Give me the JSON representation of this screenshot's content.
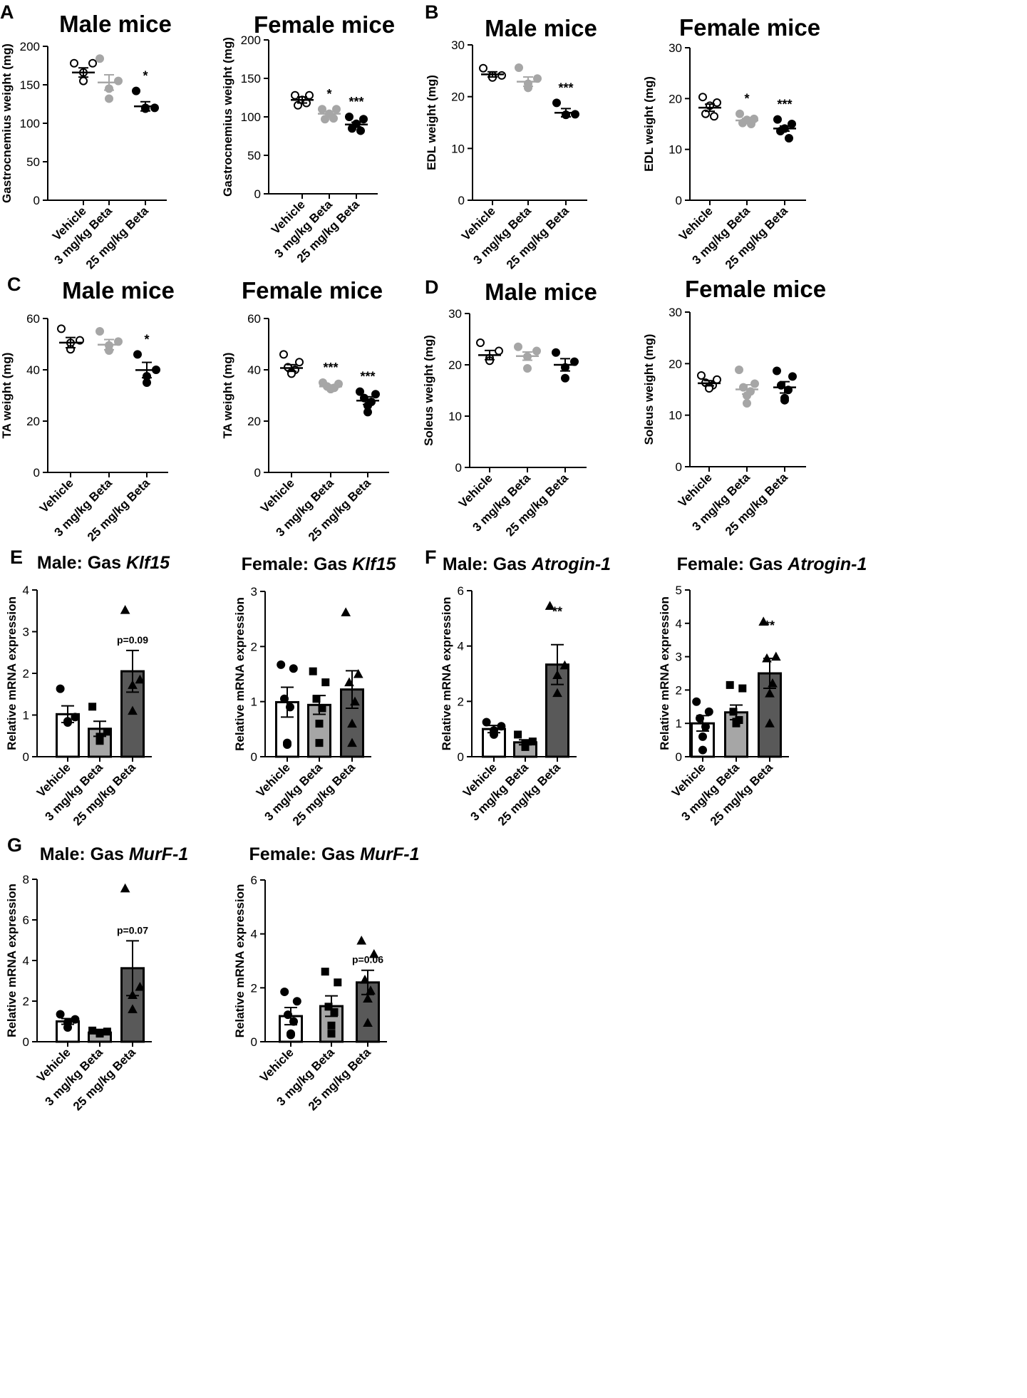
{
  "figure": {
    "panel_labels": [
      "A",
      "B",
      "C",
      "D",
      "E",
      "F",
      "G"
    ],
    "colors": {
      "vehicle": "#ffffff",
      "low_dose_point": "#a6a6a6",
      "high_dose_point": "#000000",
      "bar_vehicle": "#ffffff",
      "bar_low": "#a6a6a6",
      "bar_high": "#595959",
      "axis": "#000000"
    }
  },
  "chart_data": [
    {
      "id": "A-male",
      "panel": "A",
      "type": "scatter",
      "title": "Male mice",
      "title_style": "big",
      "ylabel": "Gastrocnemius weight (mg)",
      "ylim": [
        0,
        200
      ],
      "yticks": [
        0,
        50,
        100,
        150,
        200
      ],
      "categories": [
        "Vehicle",
        "3 mg/kg Beta",
        "25 mg/kg Beta"
      ],
      "series": [
        {
          "name": "Vehicle",
          "mean": 166,
          "sem": 6,
          "points": [
            178,
            178,
            166,
            155
          ],
          "marker": "open-circle"
        },
        {
          "name": "3 mg/kg Beta",
          "mean": 153,
          "sem": 10,
          "points": [
            184,
            155,
            145,
            132
          ],
          "marker": "grey-circle"
        },
        {
          "name": "25 mg/kg Beta",
          "mean": 122,
          "sem": 6,
          "points": [
            142,
            120,
            120,
            119
          ],
          "marker": "black-circle"
        }
      ],
      "annotations": [
        "",
        "",
        "*"
      ]
    },
    {
      "id": "A-female",
      "panel": "",
      "type": "scatter",
      "title": "Female mice",
      "title_style": "big",
      "ylabel": "Gastrocnemius weight (mg)",
      "ylim": [
        0,
        200
      ],
      "yticks": [
        0,
        50,
        100,
        150,
        200
      ],
      "categories": [
        "Vehicle",
        "3 mg/kg Beta",
        "25 mg/kg Beta"
      ],
      "series": [
        {
          "name": "Vehicle",
          "mean": 122,
          "sem": 4,
          "points": [
            128,
            128,
            122,
            115,
            118
          ],
          "marker": "open-circle"
        },
        {
          "name": "3 mg/kg Beta",
          "mean": 104,
          "sem": 3,
          "points": [
            110,
            110,
            104,
            97,
            98
          ],
          "marker": "grey-circle"
        },
        {
          "name": "25 mg/kg Beta",
          "mean": 90,
          "sem": 3,
          "points": [
            100,
            97,
            91,
            85,
            82
          ],
          "marker": "black-circle"
        }
      ],
      "annotations": [
        "",
        "*",
        "***"
      ]
    },
    {
      "id": "B-male",
      "panel": "B",
      "type": "scatter",
      "title": "Male mice",
      "title_style": "big",
      "ylabel": "EDL weight (mg)",
      "ylim": [
        0,
        30
      ],
      "yticks": [
        0,
        10,
        20,
        30
      ],
      "categories": [
        "Vehicle",
        "3 mg/kg Beta",
        "25 mg/kg Beta"
      ],
      "series": [
        {
          "name": "Vehicle",
          "mean": 24.3,
          "sem": 0.5,
          "points": [
            25.5,
            24.1,
            24.1,
            23.7
          ],
          "marker": "open-circle"
        },
        {
          "name": "3 mg/kg Beta",
          "mean": 22.9,
          "sem": 0.9,
          "points": [
            25.6,
            23.5,
            22.5,
            21.7
          ],
          "marker": "grey-circle"
        },
        {
          "name": "25 mg/kg Beta",
          "mean": 16.9,
          "sem": 0.8,
          "points": [
            18.8,
            16.6,
            16.5,
            16.5
          ],
          "marker": "black-circle"
        }
      ],
      "annotations": [
        "",
        "",
        "***"
      ]
    },
    {
      "id": "B-female",
      "panel": "",
      "type": "scatter",
      "title": "Female mice",
      "title_style": "big",
      "ylabel": "EDL weight (mg)",
      "ylim": [
        0,
        30
      ],
      "yticks": [
        0,
        10,
        20,
        30
      ],
      "categories": [
        "Vehicle",
        "3 mg/kg Beta",
        "25 mg/kg Beta"
      ],
      "series": [
        {
          "name": "Vehicle",
          "mean": 18.2,
          "sem": 0.7,
          "points": [
            20.3,
            19.2,
            18.6,
            17.0,
            16.5
          ],
          "marker": "open-circle"
        },
        {
          "name": "3 mg/kg Beta",
          "mean": 15.7,
          "sem": 0.4,
          "points": [
            17.0,
            16.0,
            15.8,
            15.2,
            15.0
          ],
          "marker": "grey-circle"
        },
        {
          "name": "25 mg/kg Beta",
          "mean": 14.1,
          "sem": 0.5,
          "points": [
            15.9,
            15.0,
            14.1,
            13.6,
            12.2
          ],
          "marker": "black-circle"
        }
      ],
      "annotations": [
        "",
        "*",
        "***"
      ]
    },
    {
      "id": "C-male",
      "panel": "C",
      "type": "scatter",
      "title": "Male mice",
      "title_style": "big",
      "ylabel": "TA weight (mg)",
      "ylim": [
        0,
        60
      ],
      "yticks": [
        0,
        20,
        40,
        60
      ],
      "categories": [
        "Vehicle",
        "3 mg/kg Beta",
        "25 mg/kg Beta"
      ],
      "series": [
        {
          "name": "Vehicle",
          "mean": 50.6,
          "sem": 2,
          "points": [
            56,
            51.5,
            50.5,
            48
          ],
          "marker": "open-circle"
        },
        {
          "name": "3 mg/kg Beta",
          "mean": 49.8,
          "sem": 2,
          "points": [
            55,
            51,
            49.5,
            47.5
          ],
          "marker": "grey-circle"
        },
        {
          "name": "25 mg/kg Beta",
          "mean": 39.9,
          "sem": 3,
          "points": [
            46,
            40,
            37.5,
            35
          ],
          "marker": "black-circle"
        }
      ],
      "annotations": [
        "",
        "",
        "*"
      ]
    },
    {
      "id": "C-female",
      "panel": "",
      "type": "scatter",
      "title": "Female mice",
      "title_style": "big",
      "ylabel": "TA weight (mg)",
      "ylim": [
        0,
        60
      ],
      "yticks": [
        0,
        20,
        40,
        60
      ],
      "categories": [
        "Vehicle",
        "3 mg/kg Beta",
        "25 mg/kg Beta"
      ],
      "series": [
        {
          "name": "Vehicle",
          "mean": 40.7,
          "sem": 1.3,
          "points": [
            46,
            43,
            41,
            40,
            39,
            38.5
          ],
          "marker": "open-circle"
        },
        {
          "name": "3 mg/kg Beta",
          "mean": 33.5,
          "sem": 0.6,
          "points": [
            35,
            34.5,
            33.5,
            33,
            32.5,
            32.5
          ],
          "marker": "grey-circle"
        },
        {
          "name": "25 mg/kg Beta",
          "mean": 28,
          "sem": 1.5,
          "points": [
            31.5,
            30.5,
            29,
            27.5,
            26,
            23.5
          ],
          "marker": "black-circle"
        }
      ],
      "annotations": [
        "",
        "***",
        "***"
      ]
    },
    {
      "id": "D-male",
      "panel": "D",
      "type": "scatter",
      "title": "Male mice",
      "title_style": "big",
      "ylabel": "Soleus weight (mg)",
      "ylim": [
        0,
        30
      ],
      "yticks": [
        0,
        10,
        20,
        30
      ],
      "categories": [
        "Vehicle",
        "3 mg/kg Beta",
        "25 mg/kg Beta"
      ],
      "series": [
        {
          "name": "Vehicle",
          "mean": 21.9,
          "sem": 0.9,
          "points": [
            24.3,
            22.7,
            21.3,
            20.8
          ],
          "marker": "open-circle"
        },
        {
          "name": "3 mg/kg Beta",
          "mean": 21.7,
          "sem": 0.8,
          "points": [
            23.5,
            22.7,
            21.6,
            19.3
          ],
          "marker": "grey-circle"
        },
        {
          "name": "25 mg/kg Beta",
          "mean": 20,
          "sem": 1.2,
          "points": [
            22.4,
            20.6,
            19.5,
            17.4
          ],
          "marker": "black-circle"
        }
      ],
      "annotations": [
        "",
        "",
        ""
      ]
    },
    {
      "id": "D-female",
      "panel": "",
      "type": "scatter",
      "title": "Female mice",
      "title_style": "big",
      "ylabel": "Soleus weight (mg)",
      "ylim": [
        0,
        30
      ],
      "yticks": [
        0,
        10,
        20,
        30
      ],
      "categories": [
        "Vehicle",
        "3 mg/kg Beta",
        "25 mg/kg Beta"
      ],
      "series": [
        {
          "name": "Vehicle",
          "mean": 16.2,
          "sem": 0.5,
          "points": [
            17.7,
            16.9,
            16.3,
            15.8,
            15.5,
            15.2
          ],
          "marker": "open-circle"
        },
        {
          "name": "3 mg/kg Beta",
          "mean": 15,
          "sem": 0.9,
          "points": [
            18.8,
            16.1,
            15.4,
            14.6,
            13.8,
            12.3
          ],
          "marker": "grey-circle"
        },
        {
          "name": "25 mg/kg Beta",
          "mean": 15.4,
          "sem": 1.1,
          "points": [
            18.6,
            17.5,
            15.8,
            14.9,
            13.3,
            12.9
          ],
          "marker": "black-circle"
        }
      ],
      "annotations": [
        "",
        "",
        ""
      ]
    },
    {
      "id": "E-male",
      "panel": "E",
      "type": "bar",
      "title_parts": [
        "Male: Gas ",
        "Klf15"
      ],
      "title_style": "small",
      "ylabel": "Relative mRNA expression",
      "ylim": [
        0,
        4
      ],
      "yticks": [
        0,
        1,
        2,
        3,
        4
      ],
      "categories": [
        "Vehicle",
        "3 mg/kg Beta",
        "25 mg/kg Beta"
      ],
      "series": [
        {
          "name": "Vehicle",
          "mean": 1.02,
          "sem": 0.2,
          "points": [
            1.63,
            0.95,
            0.85,
            0.82
          ],
          "marker": "circle"
        },
        {
          "name": "3 mg/kg Beta",
          "mean": 0.67,
          "sem": 0.18,
          "points": [
            1.2,
            0.6,
            0.48,
            0.38
          ],
          "marker": "square"
        },
        {
          "name": "25 mg/kg Beta",
          "mean": 2.05,
          "sem": 0.5,
          "points": [
            3.52,
            1.85,
            1.72,
            1.1
          ],
          "marker": "triangle"
        }
      ],
      "annotations": [
        "",
        "",
        "p=0.09"
      ]
    },
    {
      "id": "E-female",
      "panel": "",
      "type": "bar",
      "title_parts": [
        "Female: Gas ",
        "Klf15"
      ],
      "title_style": "small",
      "ylabel": "Relative mRNA expression",
      "ylim": [
        0,
        3
      ],
      "yticks": [
        0,
        1,
        2,
        3
      ],
      "categories": [
        "Vehicle",
        "3 mg/kg Beta",
        "25 mg/kg Beta"
      ],
      "series": [
        {
          "name": "Vehicle",
          "mean": 0.99,
          "sem": 0.27,
          "points": [
            1.67,
            1.6,
            1.05,
            0.9,
            0.25,
            0.22
          ],
          "marker": "circle"
        },
        {
          "name": "3 mg/kg Beta",
          "mean": 0.94,
          "sem": 0.17,
          "points": [
            1.55,
            1.35,
            1.05,
            0.88,
            0.6,
            0.25
          ],
          "marker": "square"
        },
        {
          "name": "25 mg/kg Beta",
          "mean": 1.22,
          "sem": 0.34,
          "points": [
            2.62,
            1.5,
            1.35,
            1.0,
            0.6,
            0.25
          ],
          "marker": "triangle"
        }
      ],
      "annotations": [
        "",
        "",
        ""
      ]
    },
    {
      "id": "F-male",
      "panel": "F",
      "type": "bar",
      "title_parts": [
        "Male: Gas ",
        "Atrogin-1"
      ],
      "title_style": "small",
      "ylabel": "Relative mRNA expression",
      "ylim": [
        0,
        6
      ],
      "yticks": [
        0,
        2,
        4,
        6
      ],
      "categories": [
        "Vehicle",
        "3 mg/kg Beta",
        "25 mg/kg Beta"
      ],
      "series": [
        {
          "name": "Vehicle",
          "mean": 1.0,
          "sem": 0.13,
          "points": [
            1.25,
            1.1,
            0.95,
            0.8
          ],
          "marker": "circle"
        },
        {
          "name": "3 mg/kg Beta",
          "mean": 0.52,
          "sem": 0.09,
          "points": [
            0.8,
            0.55,
            0.45,
            0.35
          ],
          "marker": "square"
        },
        {
          "name": "25 mg/kg Beta",
          "mean": 3.33,
          "sem": 0.72,
          "points": [
            5.45,
            3.3,
            2.95,
            2.3
          ],
          "marker": "triangle"
        }
      ],
      "annotations": [
        "",
        "",
        "**"
      ]
    },
    {
      "id": "F-female",
      "panel": "",
      "type": "bar",
      "title_parts": [
        "Female: Gas ",
        "Atrogin-1"
      ],
      "title_style": "small",
      "ylabel": "Relative mRNA expression",
      "ylim": [
        0,
        5
      ],
      "yticks": [
        0,
        1,
        2,
        3,
        4,
        5
      ],
      "categories": [
        "Vehicle",
        "3 mg/kg Beta",
        "25 mg/kg Beta"
      ],
      "series": [
        {
          "name": "Vehicle",
          "mean": 1.0,
          "sem": 0.23,
          "points": [
            1.65,
            1.35,
            1.15,
            0.9,
            0.6,
            0.2
          ],
          "marker": "circle"
        },
        {
          "name": "3 mg/kg Beta",
          "mean": 1.33,
          "sem": 0.22,
          "points": [
            2.15,
            2.05,
            1.35,
            1.1,
            1.05,
            1.0
          ],
          "marker": "square"
        },
        {
          "name": "25 mg/kg Beta",
          "mean": 2.5,
          "sem": 0.45,
          "points": [
            4.05,
            3.0,
            2.95,
            2.2,
            1.9,
            1.0
          ],
          "marker": "triangle"
        }
      ],
      "annotations": [
        "",
        "",
        "**"
      ]
    },
    {
      "id": "G-male",
      "panel": "G",
      "type": "bar",
      "title_parts": [
        "Male: Gas ",
        "MurF-1"
      ],
      "title_style": "small",
      "ylabel": "Relative mRNA expression",
      "ylim": [
        0,
        8
      ],
      "yticks": [
        0,
        2,
        4,
        6,
        8
      ],
      "categories": [
        "Vehicle",
        "3 mg/kg Beta",
        "25 mg/kg Beta"
      ],
      "series": [
        {
          "name": "Vehicle",
          "mean": 1.0,
          "sem": 0.14,
          "points": [
            1.35,
            1.1,
            0.95,
            0.7
          ],
          "marker": "circle"
        },
        {
          "name": "3 mg/kg Beta",
          "mean": 0.45,
          "sem": 0.05,
          "points": [
            0.55,
            0.5,
            0.45,
            0.4
          ],
          "marker": "square"
        },
        {
          "name": "25 mg/kg Beta",
          "mean": 3.62,
          "sem": 1.35,
          "points": [
            7.55,
            2.7,
            2.3,
            1.6
          ],
          "marker": "triangle"
        }
      ],
      "annotations": [
        "",
        "",
        "p=0.07"
      ]
    },
    {
      "id": "G-female",
      "panel": "",
      "type": "bar",
      "title_parts": [
        "Female: Gas ",
        "MurF-1"
      ],
      "title_style": "small",
      "ylabel": "Relative mRNA expression",
      "ylim": [
        0,
        6
      ],
      "yticks": [
        0,
        2,
        4,
        6
      ],
      "categories": [
        "Vehicle",
        "3 mg/kg Beta",
        "25 mg/kg Beta"
      ],
      "series": [
        {
          "name": "Vehicle",
          "mean": 0.95,
          "sem": 0.32,
          "points": [
            1.85,
            1.5,
            1.0,
            0.75,
            0.3,
            0.25
          ],
          "marker": "circle"
        },
        {
          "name": "3 mg/kg Beta",
          "mean": 1.32,
          "sem": 0.38,
          "points": [
            2.6,
            2.2,
            1.3,
            1.1,
            0.6,
            0.3
          ],
          "marker": "square"
        },
        {
          "name": "25 mg/kg Beta",
          "mean": 2.2,
          "sem": 0.45,
          "points": [
            3.75,
            3.25,
            2.3,
            1.9,
            1.6,
            0.7
          ],
          "marker": "triangle"
        }
      ],
      "annotations": [
        "",
        "",
        "p=0.06"
      ]
    }
  ]
}
